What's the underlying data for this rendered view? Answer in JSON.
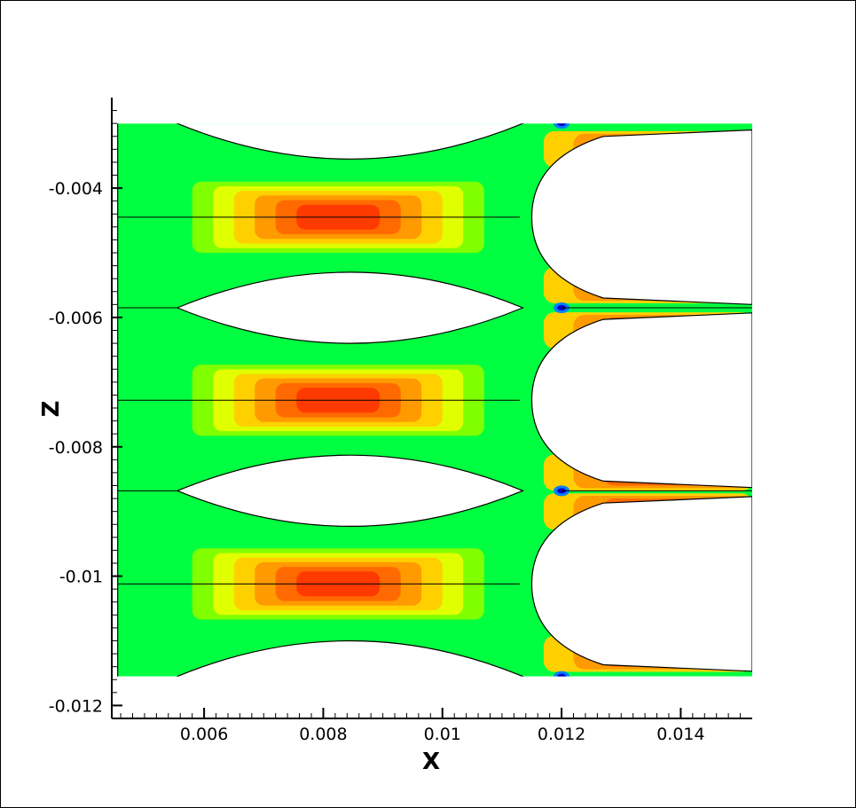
{
  "chart_data": {
    "type": "heatmap",
    "title": "",
    "xlabel": "X",
    "ylabel": "Z",
    "xlim": [
      0.00445,
      0.0152
    ],
    "ylim": [
      -0.0122,
      -0.0026
    ],
    "x_ticks": [
      0.006,
      0.008,
      0.01,
      0.012,
      0.014
    ],
    "x_tick_labels": [
      "0.006",
      "0.008",
      "0.01",
      "0.012",
      "0.014"
    ],
    "y_ticks": [
      -0.004,
      -0.006,
      -0.008,
      -0.01,
      -0.012
    ],
    "y_tick_labels": [
      "-0.004",
      "-0.006",
      "-0.008",
      "-0.01",
      "-0.012"
    ],
    "domain": {
      "x": [
        0.00455,
        0.0152
      ],
      "z": [
        -0.01155,
        -0.003
      ]
    },
    "colormap": [
      "#0000c8",
      "#0080ff",
      "#00e0e0",
      "#00ff40",
      "#7fff00",
      "#e0ff00",
      "#ffd000",
      "#ff9a00",
      "#ff6a00",
      "#ff3a00",
      "#f00000"
    ],
    "colorbar_shown": false,
    "channels": [
      {
        "z_center": -0.00445,
        "peak_x": 0.0089,
        "peak_level": 9
      },
      {
        "z_center": -0.00728,
        "peak_x": 0.0089,
        "peak_level": 9
      },
      {
        "z_center": -0.01012,
        "peak_x": 0.0089,
        "peak_level": 9
      }
    ],
    "outlet_jets": [
      {
        "z_center": -0.0034,
        "peak_level": 10
      },
      {
        "z_center": -0.0055,
        "peak_level": 10
      },
      {
        "z_center": -0.0062,
        "peak_level": 10
      },
      {
        "z_center": -0.0084,
        "peak_level": 10
      },
      {
        "z_center": -0.009,
        "peak_level": 10
      },
      {
        "z_center": -0.0112,
        "peak_level": 10
      }
    ],
    "low_spots": [
      {
        "x": 0.012,
        "z": -0.003
      },
      {
        "x": 0.012,
        "z": -0.00585
      },
      {
        "x": 0.012,
        "z": -0.00868
      },
      {
        "x": 0.012,
        "z": -0.01155
      }
    ],
    "grid": false
  }
}
